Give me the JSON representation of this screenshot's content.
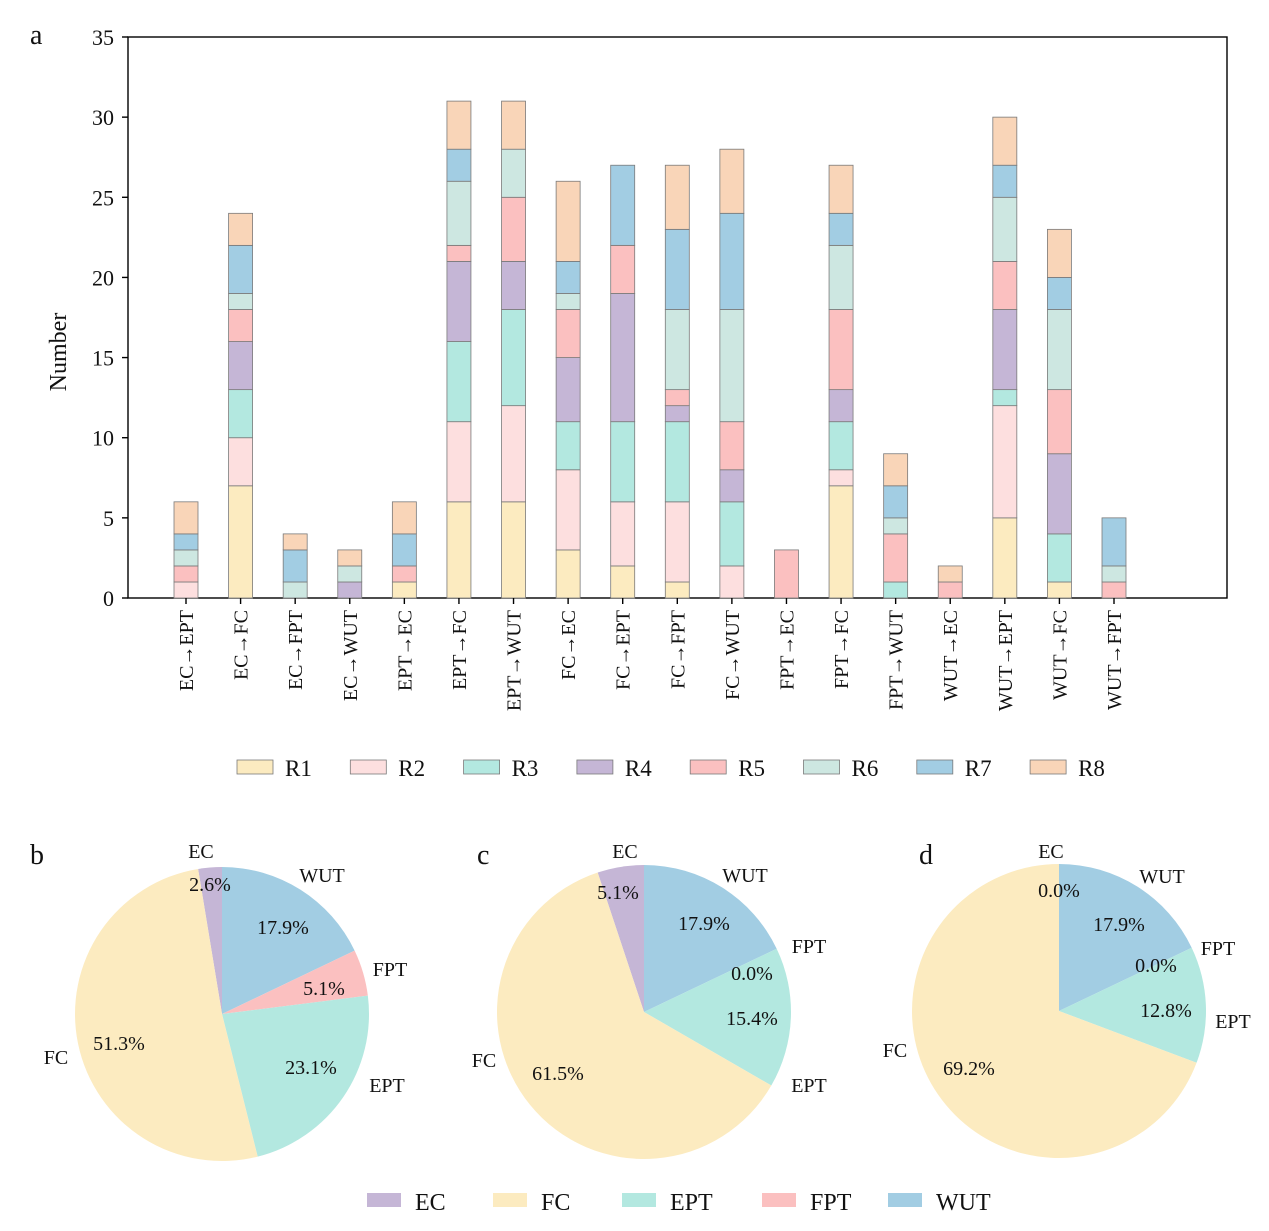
{
  "colors": {
    "R1": "#FCEBC0",
    "R2": "#FDDFDF",
    "R3": "#B3E8E0",
    "R4": "#C5B6D6",
    "R5": "#FBC0C0",
    "R6": "#CDE7E1",
    "R7": "#A2CDE3",
    "R8": "#F9D5B8",
    "EC": "#C5B6D6",
    "FC": "#FCEBC0",
    "EPT": "#B3E8E0",
    "FPT": "#FBC0C0",
    "WUT": "#A2CDE3"
  },
  "chart_data": [
    {
      "panel": "a",
      "type": "bar",
      "stacked": true,
      "ylabel": "Number",
      "ylim": [
        0,
        35
      ],
      "yticks": [
        0,
        5,
        10,
        15,
        20,
        25,
        30,
        35
      ],
      "categories": [
        "EC→EPT",
        "EC→FC",
        "EC→FPT",
        "EC→WUT",
        "EPT→EC",
        "EPT→FC",
        "EPT→WUT",
        "FC→EC",
        "FC→EPT",
        "FC→FPT",
        "FC→WUT",
        "FPT→EC",
        "FPT→FC",
        "FPT→WUT",
        "WUT→EC",
        "WUT→EPT",
        "WUT→FC",
        "WUT→FPT"
      ],
      "series": [
        {
          "name": "R1",
          "values": [
            0,
            7,
            0,
            0,
            1,
            6,
            6,
            3,
            2,
            1,
            0,
            0,
            7,
            0,
            0,
            5,
            1,
            0
          ]
        },
        {
          "name": "R2",
          "values": [
            1,
            3,
            0,
            0,
            0,
            5,
            6,
            5,
            4,
            5,
            2,
            0,
            1,
            0,
            0,
            7,
            0,
            0
          ]
        },
        {
          "name": "R3",
          "values": [
            0,
            3,
            0,
            0,
            0,
            5,
            6,
            3,
            5,
            5,
            4,
            0,
            3,
            1,
            0,
            1,
            3,
            0
          ]
        },
        {
          "name": "R4",
          "values": [
            0,
            3,
            0,
            1,
            0,
            5,
            3,
            4,
            8,
            1,
            2,
            0,
            2,
            0,
            0,
            5,
            5,
            0
          ]
        },
        {
          "name": "R5",
          "values": [
            1,
            2,
            0,
            0,
            1,
            1,
            4,
            3,
            3,
            1,
            3,
            3,
            5,
            3,
            1,
            3,
            4,
            1
          ]
        },
        {
          "name": "R6",
          "values": [
            1,
            1,
            1,
            1,
            0,
            4,
            3,
            1,
            0,
            5,
            7,
            0,
            4,
            1,
            0,
            4,
            5,
            1
          ]
        },
        {
          "name": "R7",
          "values": [
            1,
            3,
            2,
            0,
            2,
            2,
            0,
            2,
            5,
            5,
            6,
            0,
            2,
            2,
            0,
            2,
            2,
            3
          ]
        },
        {
          "name": "R8",
          "values": [
            2,
            2,
            1,
            1,
            2,
            3,
            3,
            5,
            0,
            4,
            4,
            0,
            3,
            2,
            1,
            3,
            3,
            0
          ]
        }
      ],
      "legend": [
        "R1",
        "R2",
        "R3",
        "R4",
        "R5",
        "R6",
        "R7",
        "R8"
      ]
    },
    {
      "panel": "b",
      "type": "pie",
      "slices": [
        {
          "name": "EC",
          "value": 2.6,
          "label": "2.6%"
        },
        {
          "name": "WUT",
          "value": 17.9,
          "label": "17.9%"
        },
        {
          "name": "FPT",
          "value": 5.1,
          "label": "5.1%"
        },
        {
          "name": "EPT",
          "value": 23.1,
          "label": "23.1%"
        },
        {
          "name": "FC",
          "value": 51.3,
          "label": "51.3%"
        }
      ]
    },
    {
      "panel": "c",
      "type": "pie",
      "slices": [
        {
          "name": "EC",
          "value": 5.1,
          "label": "5.1%"
        },
        {
          "name": "WUT",
          "value": 17.9,
          "label": "17.9%"
        },
        {
          "name": "FPT",
          "value": 0.0,
          "label": "0.0%"
        },
        {
          "name": "EPT",
          "value": 15.4,
          "label": "15.4%"
        },
        {
          "name": "FC",
          "value": 61.5,
          "label": "61.5%"
        }
      ]
    },
    {
      "panel": "d",
      "type": "pie",
      "slices": [
        {
          "name": "EC",
          "value": 0.0,
          "label": "0.0%"
        },
        {
          "name": "WUT",
          "value": 17.9,
          "label": "17.9%"
        },
        {
          "name": "FPT",
          "value": 0.0,
          "label": "0.0%"
        },
        {
          "name": "EPT",
          "value": 12.8,
          "label": "12.8%"
        },
        {
          "name": "FC",
          "value": 69.2,
          "label": "69.2%"
        }
      ]
    }
  ],
  "pie_legend": [
    "EC",
    "FC",
    "EPT",
    "FPT",
    "WUT"
  ]
}
